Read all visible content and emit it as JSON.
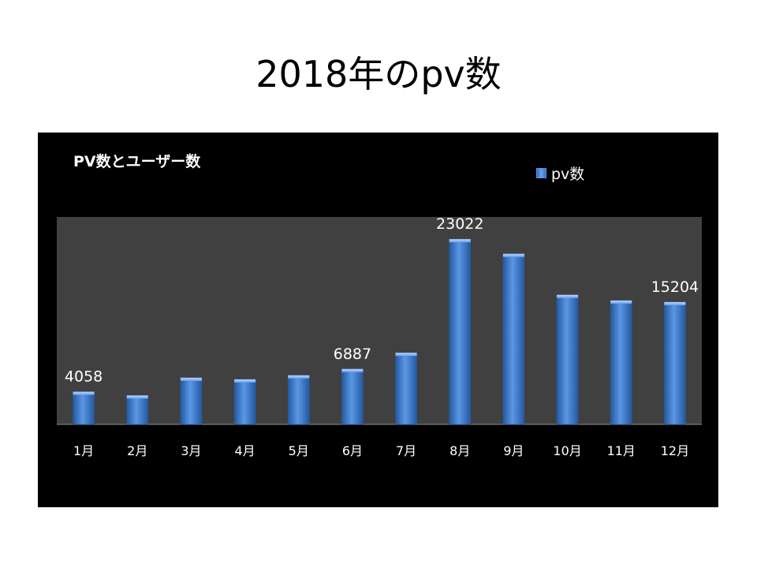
{
  "slide": {
    "title": "2018年のpv数"
  },
  "chart_data": {
    "type": "bar",
    "title": "PV数とユーザー数",
    "xlabel": "",
    "ylabel": "",
    "categories": [
      "1月",
      "2月",
      "3月",
      "4月",
      "5月",
      "6月",
      "7月",
      "8月",
      "9月",
      "10月",
      "11月",
      "12月"
    ],
    "series": [
      {
        "name": "pv数",
        "values": [
          4058,
          3600,
          5800,
          5600,
          6100,
          6887,
          8900,
          23022,
          21200,
          16100,
          15400,
          15204
        ],
        "data_labels": [
          4058,
          null,
          null,
          null,
          null,
          6887,
          null,
          23022,
          null,
          null,
          null,
          15204
        ]
      }
    ],
    "ylim": [
      0,
      25000
    ],
    "grid": false,
    "legend_position": "top-right",
    "colors": {
      "panel_background": "#000000",
      "plot_background": "#404040",
      "bar": "#3a78cc",
      "text": "#ffffff"
    }
  }
}
